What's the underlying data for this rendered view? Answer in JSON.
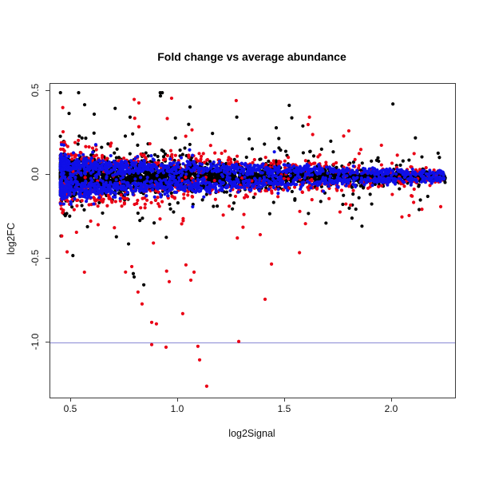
{
  "figure": {
    "background": "#ffffff",
    "frame_color": "#3c3c3c"
  },
  "chart_data": {
    "type": "scatter",
    "title": "Fold change vs average abundance",
    "xlabel": "log2Signal",
    "ylabel": "log2FC",
    "xlim": [
      0.403,
      2.295
    ],
    "ylim": [
      -1.33,
      0.543
    ],
    "grid": false,
    "legend": "none",
    "point_radius": 2.1,
    "x_ticks": [
      {
        "value": 0.5,
        "label": "0.5"
      },
      {
        "value": 1.0,
        "label": "1.0"
      },
      {
        "value": 1.5,
        "label": "1.5"
      },
      {
        "value": 2.0,
        "label": "2.0"
      }
    ],
    "y_ticks": [
      {
        "value": 0.5,
        "label": "0.5"
      },
      {
        "value": 0.0,
        "label": "0.0"
      },
      {
        "value": -0.5,
        "label": "-0.5"
      },
      {
        "value": -1.0,
        "label": "-1.0"
      }
    ],
    "reference_line": {
      "orientation": "horizontal",
      "value": -1.0,
      "color": "#8888d4"
    },
    "series": [
      {
        "name": "unchanged-black",
        "color": "#000000",
        "n": 3000,
        "seed": 11,
        "x_min": 0.45,
        "x_span": 1.8,
        "x_pow": 1.7,
        "center": -0.012,
        "sigma": [
          0.055,
          0.01
        ],
        "offset_up": [
          0,
          0
        ],
        "offset_down": [
          0,
          0
        ],
        "tail_frac": 0.13,
        "tail_scale": 0.115,
        "tail_bias_down": 0.42,
        "y_clamp": [
          -0.66,
          0.49
        ],
        "outlier_points": [
          [
            0.791,
            -0.59
          ],
          [
            0.795,
            -0.61
          ],
          [
            0.84,
            -0.657
          ],
          [
            0.918,
            0.471
          ],
          [
            1.056,
            0.405
          ]
        ]
      },
      {
        "name": "flagged-red",
        "color": "#ea0015",
        "n": 620,
        "seed": 77,
        "x_min": 0.45,
        "x_span": 1.8,
        "x_pow": 1.5,
        "center": -0.005,
        "sigma": [
          0.045,
          0.012
        ],
        "offset_up": [
          0.105,
          0.02
        ],
        "offset_down": [
          0.125,
          0.024
        ],
        "tail_frac": 0.28,
        "tail_scale": 0.14,
        "tail_bias_down": 0.62,
        "y_clamp": [
          -1.27,
          0.47
        ],
        "outlier_points": [
          [
            0.784,
            -0.548
          ],
          [
            1.037,
            -0.538
          ],
          [
            1.075,
            -0.581
          ],
          [
            0.959,
            -0.638
          ],
          [
            1.06,
            -0.629
          ],
          [
            0.813,
            -0.7
          ],
          [
            0.832,
            -0.771
          ],
          [
            1.437,
            -0.533
          ],
          [
            1.407,
            -0.743
          ],
          [
            1.022,
            -0.829
          ],
          [
            0.877,
            -0.881
          ],
          [
            0.899,
            -0.89
          ],
          [
            0.877,
            -1.014
          ],
          [
            0.944,
            -1.029
          ],
          [
            1.093,
            -1.024
          ],
          [
            1.284,
            -0.995
          ],
          [
            1.101,
            -1.105
          ],
          [
            1.134,
            -1.262
          ],
          [
            0.97,
            0.457
          ],
          [
            1.272,
            0.443
          ],
          [
            0.817,
            0.429
          ],
          [
            1.608,
            0.3
          ]
        ]
      },
      {
        "name": "flagged-blue",
        "color": "#0f0fe8",
        "n": 1750,
        "seed": 42,
        "x_min": 0.45,
        "x_span": 1.8,
        "x_pow": 1.7,
        "center": -0.005,
        "sigma": [
          0.03,
          0.008
        ],
        "offset_up": [
          0.06,
          0.015
        ],
        "offset_down": [
          0.082,
          0.018
        ],
        "tail_frac": 0.04,
        "tail_scale": 0.05,
        "tail_bias_down": 0.55,
        "y_clamp": [
          -0.2,
          0.18
        ],
        "outlier_points": []
      }
    ]
  }
}
